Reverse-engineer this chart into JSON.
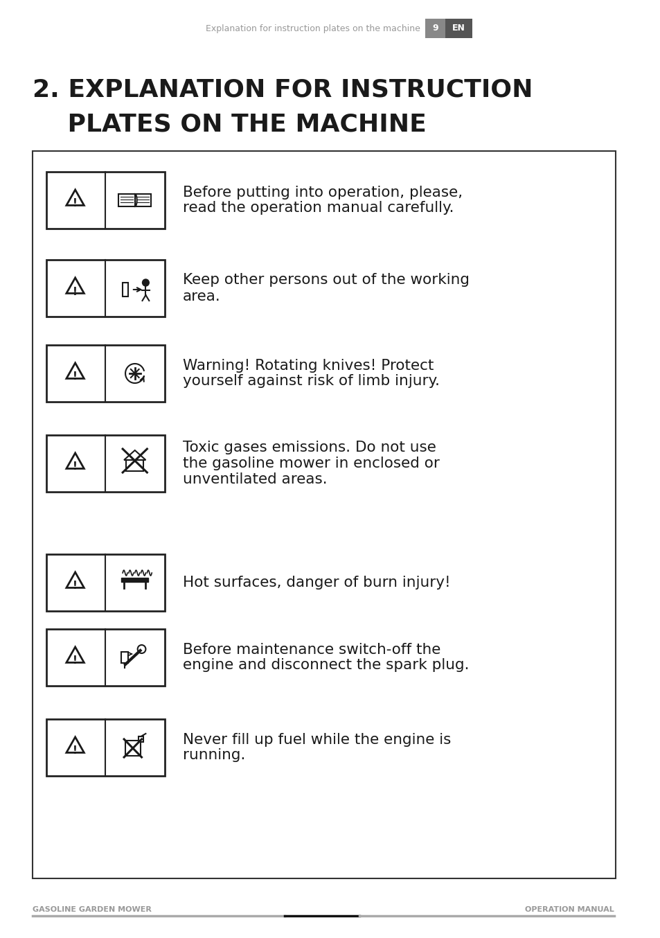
{
  "page_header_text": "Explanation for instruction plates on the machine",
  "page_number": "9",
  "page_lang": "EN",
  "title_line1": "2. EXPLANATION FOR INSTRUCTION",
  "title_line2": "    PLATES ON THE MACHINE",
  "footer_left": "GASOLINE GARDEN MOWER",
  "footer_right": "OPERATION MANUAL",
  "bg_color": "#ffffff",
  "text_color": "#1a1a1a",
  "header_text_color": "#999999",
  "page_num_bg": "#888888",
  "lang_bg": "#555555",
  "box_border_color": "#333333",
  "items": [
    {
      "text_lines": [
        "Before putting into operation, please,",
        "read the operation manual carefully."
      ],
      "icon_type": "warning_book"
    },
    {
      "text_lines": [
        "Keep other persons out of the working",
        "area."
      ],
      "icon_type": "warning_person"
    },
    {
      "text_lines": [
        "Warning! Rotating knives! Protect",
        "yourself against risk of limb injury."
      ],
      "icon_type": "warning_knife"
    },
    {
      "text_lines": [
        "Toxic gases emissions. Do not use",
        "the gasoline mower in enclosed or",
        "unventilated areas."
      ],
      "icon_type": "warning_gas"
    },
    {
      "text_lines": [
        "Hot surfaces, danger of burn injury!"
      ],
      "icon_type": "warning_hot"
    },
    {
      "text_lines": [
        "Before maintenance switch-off the",
        "engine and disconnect the spark plug."
      ],
      "icon_type": "warning_maintenance"
    },
    {
      "text_lines": [
        "Never fill up fuel while the engine is",
        "running."
      ],
      "icon_type": "warning_fuel"
    }
  ]
}
